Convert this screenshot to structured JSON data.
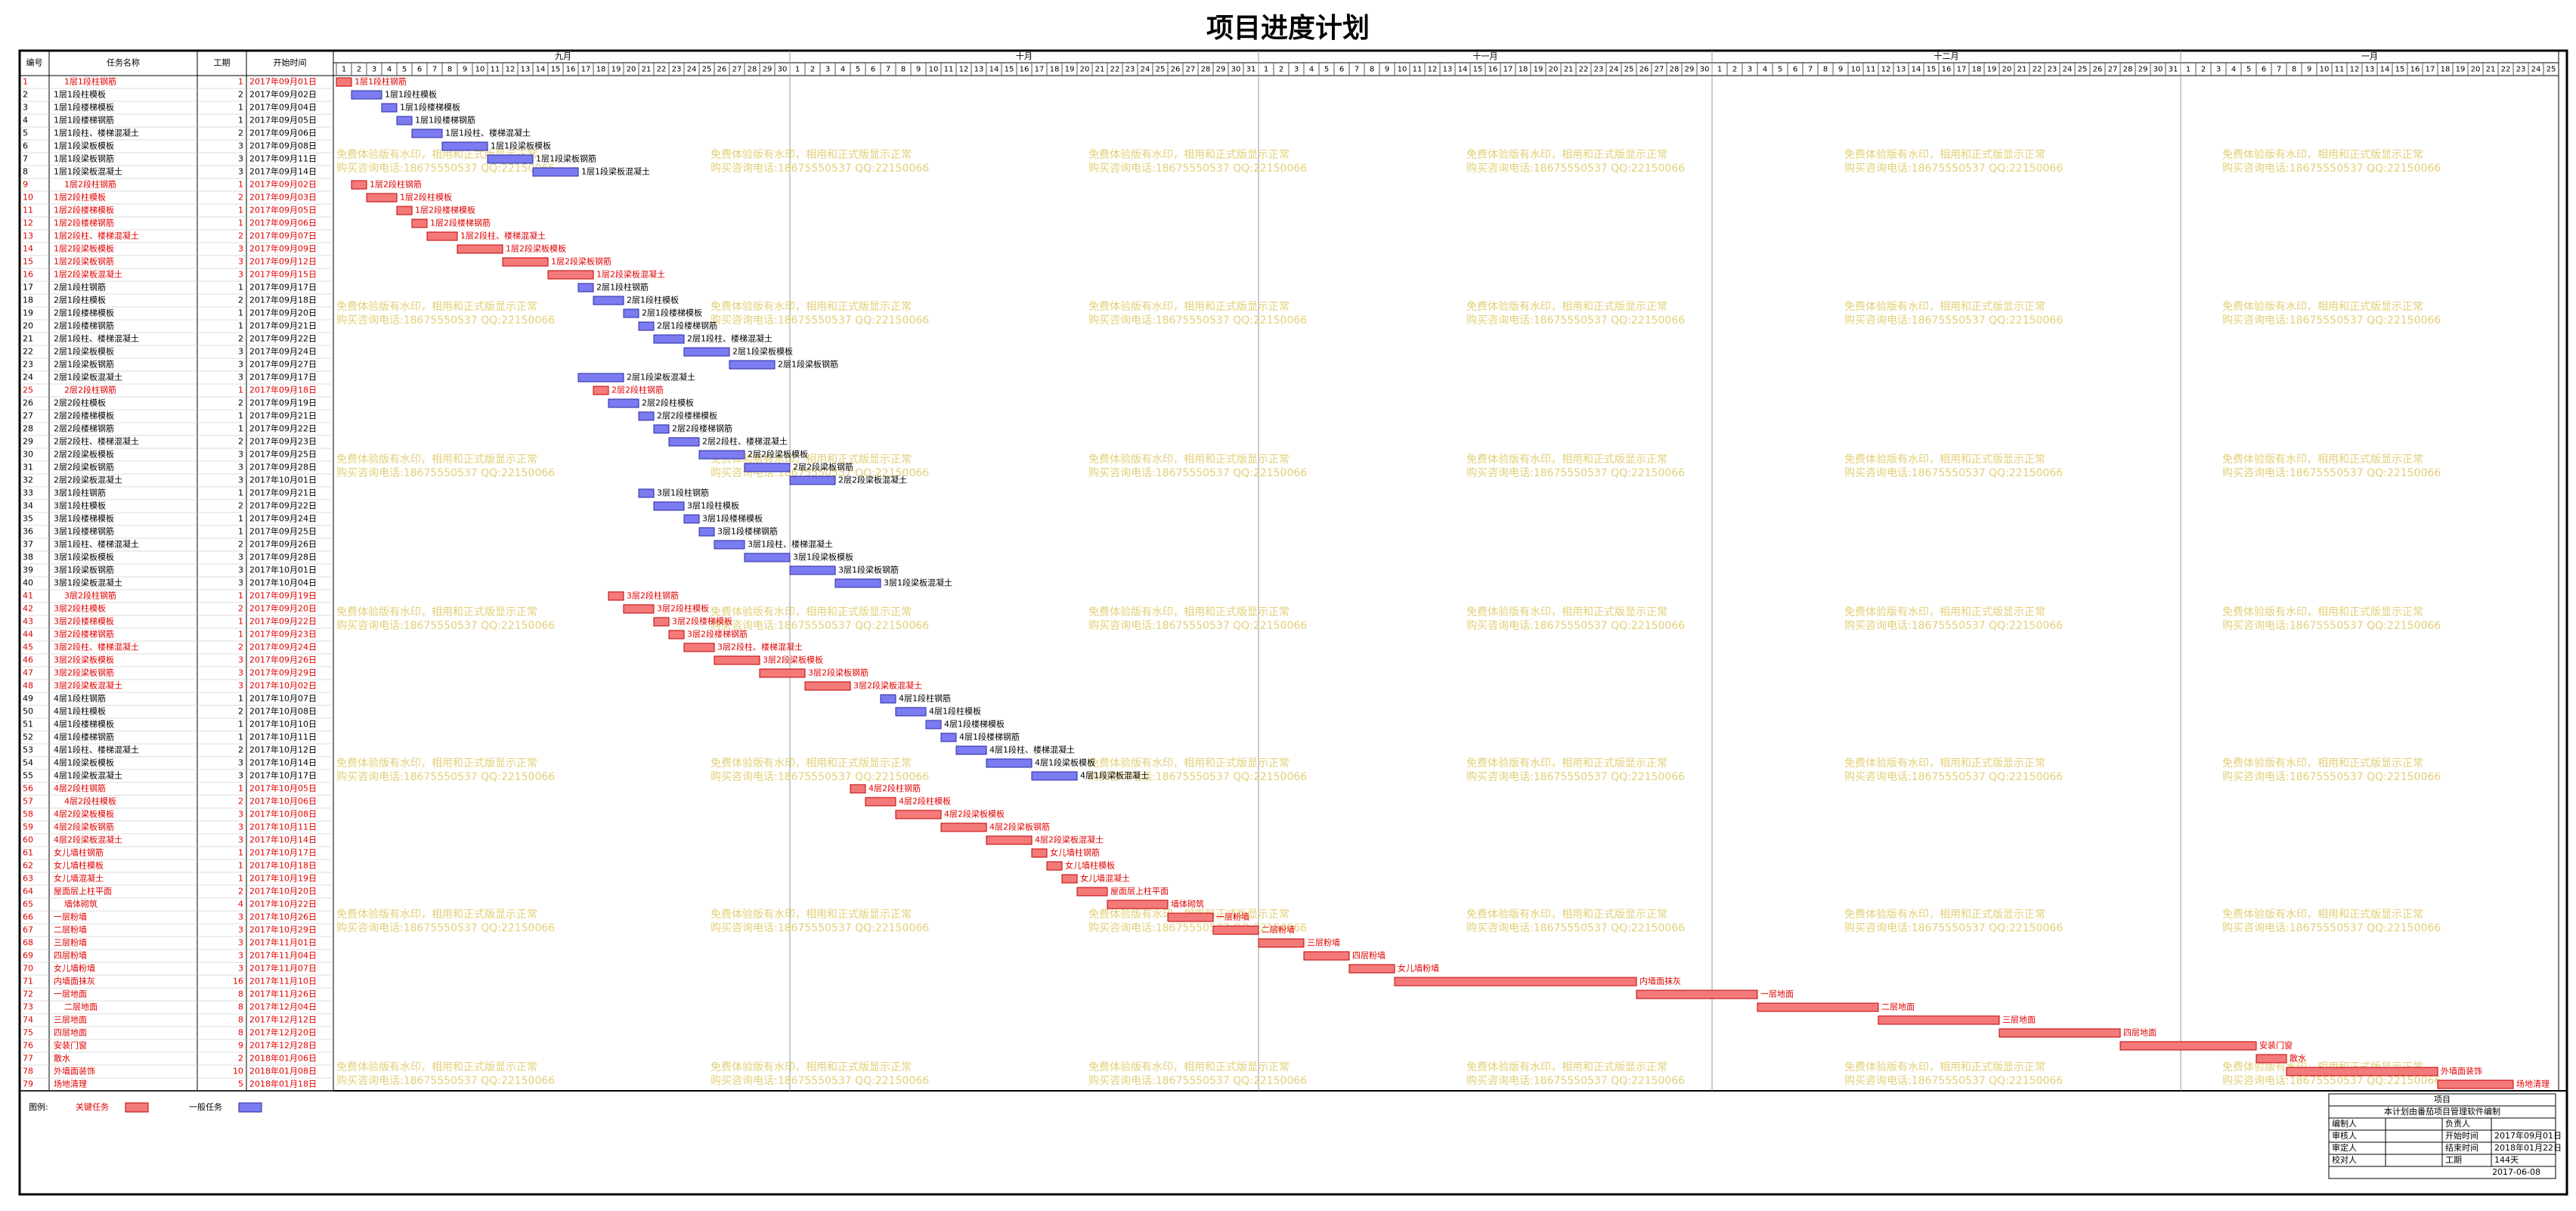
{
  "title": "项目进度计划",
  "columns": [
    "编号",
    "任务名称",
    "工期",
    "开始时间"
  ],
  "months": [
    {
      "label": "九月",
      "days": [
        1,
        2,
        3,
        4,
        5,
        6,
        7,
        8,
        9,
        10,
        11,
        12,
        13,
        14,
        15,
        16,
        17,
        18,
        19,
        20,
        21,
        22,
        23,
        24,
        25,
        26,
        27,
        28,
        29,
        30
      ]
    },
    {
      "label": "十月",
      "days": [
        1,
        2,
        3,
        4,
        5,
        6,
        7,
        8,
        9,
        10,
        11,
        12,
        13,
        14,
        15,
        16,
        17,
        18,
        19,
        20,
        21,
        22,
        23,
        24,
        25,
        26,
        27,
        28,
        29,
        30,
        31
      ]
    },
    {
      "label": "十一月",
      "days": [
        1,
        2,
        3,
        4,
        5,
        6,
        7,
        8,
        9,
        10,
        11,
        12,
        13,
        14,
        15,
        16,
        17,
        18,
        19,
        20,
        21,
        22,
        23,
        24,
        25,
        26,
        27,
        28,
        29,
        30
      ]
    },
    {
      "label": "十二月",
      "days": [
        1,
        2,
        3,
        4,
        5,
        6,
        7,
        8,
        9,
        10,
        11,
        12,
        13,
        14,
        15,
        16,
        17,
        18,
        19,
        20,
        21,
        22,
        23,
        24,
        25,
        26,
        27,
        28,
        29,
        30,
        31
      ]
    },
    {
      "label": "一月",
      "days": [
        1,
        2,
        3,
        4,
        5,
        6,
        7,
        8,
        9,
        10,
        11,
        12,
        13,
        14,
        15,
        16,
        17,
        18,
        19,
        20,
        21,
        22,
        23,
        24,
        25
      ]
    }
  ],
  "tasks": [
    {
      "id": 1,
      "name": "1层1段柱钢筋",
      "duration": 1,
      "start": "2017年09月01日",
      "critical": true
    },
    {
      "id": 2,
      "name": "1层1段柱模板",
      "duration": 2,
      "start": "2017年09月02日",
      "critical": false
    },
    {
      "id": 3,
      "name": "1层1段楼梯模板",
      "duration": 1,
      "start": "2017年09月04日",
      "critical": false
    },
    {
      "id": 4,
      "name": "1层1段楼梯钢筋",
      "duration": 1,
      "start": "2017年09月05日",
      "critical": false
    },
    {
      "id": 5,
      "name": "1层1段柱、楼梯混凝土",
      "duration": 2,
      "start": "2017年09月06日",
      "critical": false
    },
    {
      "id": 6,
      "name": "1层1段梁板模板",
      "duration": 3,
      "start": "2017年09月08日",
      "critical": false
    },
    {
      "id": 7,
      "name": "1层1段梁板钢筋",
      "duration": 3,
      "start": "2017年09月11日",
      "critical": false
    },
    {
      "id": 8,
      "name": "1层1段梁板混凝土",
      "duration": 3,
      "start": "2017年09月14日",
      "critical": false
    },
    {
      "id": 9,
      "name": "1层2段柱钢筋",
      "duration": 1,
      "start": "2017年09月02日",
      "critical": true
    },
    {
      "id": 10,
      "name": "1层2段柱模板",
      "duration": 2,
      "start": "2017年09月03日",
      "critical": true
    },
    {
      "id": 11,
      "name": "1层2段楼梯模板",
      "duration": 1,
      "start": "2017年09月05日",
      "critical": true
    },
    {
      "id": 12,
      "name": "1层2段楼梯钢筋",
      "duration": 1,
      "start": "2017年09月06日",
      "critical": true
    },
    {
      "id": 13,
      "name": "1层2段柱、楼梯混凝土",
      "duration": 2,
      "start": "2017年09月07日",
      "critical": true
    },
    {
      "id": 14,
      "name": "1层2段梁板模板",
      "duration": 3,
      "start": "2017年09月09日",
      "critical": true
    },
    {
      "id": 15,
      "name": "1层2段梁板钢筋",
      "duration": 3,
      "start": "2017年09月12日",
      "critical": true
    },
    {
      "id": 16,
      "name": "1层2段梁板混凝土",
      "duration": 3,
      "start": "2017年09月15日",
      "critical": true
    },
    {
      "id": 17,
      "name": "2层1段柱钢筋",
      "duration": 1,
      "start": "2017年09月17日",
      "critical": false
    },
    {
      "id": 18,
      "name": "2层1段柱模板",
      "duration": 2,
      "start": "2017年09月18日",
      "critical": false
    },
    {
      "id": 19,
      "name": "2层1段楼梯模板",
      "duration": 1,
      "start": "2017年09月20日",
      "critical": false
    },
    {
      "id": 20,
      "name": "2层1段楼梯钢筋",
      "duration": 1,
      "start": "2017年09月21日",
      "critical": false
    },
    {
      "id": 21,
      "name": "2层1段柱、楼梯混凝土",
      "duration": 2,
      "start": "2017年09月22日",
      "critical": false
    },
    {
      "id": 22,
      "name": "2层1段梁板模板",
      "duration": 3,
      "start": "2017年09月24日",
      "critical": false
    },
    {
      "id": 23,
      "name": "2层1段梁板钢筋",
      "duration": 3,
      "start": "2017年09月27日",
      "critical": false
    },
    {
      "id": 24,
      "name": "2层1段梁板混凝土",
      "duration": 3,
      "start": "2017年09月17日",
      "critical": false
    },
    {
      "id": 25,
      "name": "2层2段柱钢筋",
      "duration": 1,
      "start": "2017年09月18日",
      "critical": true
    },
    {
      "id": 26,
      "name": "2层2段柱模板",
      "duration": 2,
      "start": "2017年09月19日",
      "critical": false
    },
    {
      "id": 27,
      "name": "2层2段楼梯模板",
      "duration": 1,
      "start": "2017年09月21日",
      "critical": false
    },
    {
      "id": 28,
      "name": "2层2段楼梯钢筋",
      "duration": 1,
      "start": "2017年09月22日",
      "critical": false
    },
    {
      "id": 29,
      "name": "2层2段柱、楼梯混凝土",
      "duration": 2,
      "start": "2017年09月23日",
      "critical": false
    },
    {
      "id": 30,
      "name": "2层2段梁板模板",
      "duration": 3,
      "start": "2017年09月25日",
      "critical": false
    },
    {
      "id": 31,
      "name": "2层2段梁板钢筋",
      "duration": 3,
      "start": "2017年09月28日",
      "critical": false
    },
    {
      "id": 32,
      "name": "2层2段梁板混凝土",
      "duration": 3,
      "start": "2017年10月01日",
      "critical": false
    },
    {
      "id": 33,
      "name": "3层1段柱钢筋",
      "duration": 1,
      "start": "2017年09月21日",
      "critical": false
    },
    {
      "id": 34,
      "name": "3层1段柱模板",
      "duration": 2,
      "start": "2017年09月22日",
      "critical": false
    },
    {
      "id": 35,
      "name": "3层1段楼梯模板",
      "duration": 1,
      "start": "2017年09月24日",
      "critical": false
    },
    {
      "id": 36,
      "name": "3层1段楼梯钢筋",
      "duration": 1,
      "start": "2017年09月25日",
      "critical": false
    },
    {
      "id": 37,
      "name": "3层1段柱、楼梯混凝土",
      "duration": 2,
      "start": "2017年09月26日",
      "critical": false
    },
    {
      "id": 38,
      "name": "3层1段梁板模板",
      "duration": 3,
      "start": "2017年09月28日",
      "critical": false
    },
    {
      "id": 39,
      "name": "3层1段梁板钢筋",
      "duration": 3,
      "start": "2017年10月01日",
      "critical": false
    },
    {
      "id": 40,
      "name": "3层1段梁板混凝土",
      "duration": 3,
      "start": "2017年10月04日",
      "critical": false
    },
    {
      "id": 41,
      "name": "3层2段柱钢筋",
      "duration": 1,
      "start": "2017年09月19日",
      "critical": true
    },
    {
      "id": 42,
      "name": "3层2段柱模板",
      "duration": 2,
      "start": "2017年09月20日",
      "critical": true
    },
    {
      "id": 43,
      "name": "3层2段楼梯模板",
      "duration": 1,
      "start": "2017年09月22日",
      "critical": true
    },
    {
      "id": 44,
      "name": "3层2段楼梯钢筋",
      "duration": 1,
      "start": "2017年09月23日",
      "critical": true
    },
    {
      "id": 45,
      "name": "3层2段柱、楼梯混凝土",
      "duration": 2,
      "start": "2017年09月24日",
      "critical": true
    },
    {
      "id": 46,
      "name": "3层2段梁板模板",
      "duration": 3,
      "start": "2017年09月26日",
      "critical": true
    },
    {
      "id": 47,
      "name": "3层2段梁板钢筋",
      "duration": 3,
      "start": "2017年09月29日",
      "critical": true
    },
    {
      "id": 48,
      "name": "3层2段梁板混凝土",
      "duration": 3,
      "start": "2017年10月02日",
      "critical": true
    },
    {
      "id": 49,
      "name": "4层1段柱钢筋",
      "duration": 1,
      "start": "2017年10月07日",
      "critical": false
    },
    {
      "id": 50,
      "name": "4层1段柱模板",
      "duration": 2,
      "start": "2017年10月08日",
      "critical": false
    },
    {
      "id": 51,
      "name": "4层1段楼梯模板",
      "duration": 1,
      "start": "2017年10月10日",
      "critical": false
    },
    {
      "id": 52,
      "name": "4层1段楼梯钢筋",
      "duration": 1,
      "start": "2017年10月11日",
      "critical": false
    },
    {
      "id": 53,
      "name": "4层1段柱、楼梯混凝土",
      "duration": 2,
      "start": "2017年10月12日",
      "critical": false
    },
    {
      "id": 54,
      "name": "4层1段梁板模板",
      "duration": 3,
      "start": "2017年10月14日",
      "critical": false
    },
    {
      "id": 55,
      "name": "4层1段梁板混凝土",
      "duration": 3,
      "start": "2017年10月17日",
      "critical": false
    },
    {
      "id": 56,
      "name": "4层2段柱钢筋",
      "duration": 1,
      "start": "2017年10月05日",
      "critical": true
    },
    {
      "id": 57,
      "name": "4层2段柱模板",
      "duration": 2,
      "start": "2017年10月06日",
      "critical": true
    },
    {
      "id": 58,
      "name": "4层2段梁板模板",
      "duration": 3,
      "start": "2017年10月08日",
      "critical": true
    },
    {
      "id": 59,
      "name": "4层2段梁板钢筋",
      "duration": 3,
      "start": "2017年10月11日",
      "critical": true
    },
    {
      "id": 60,
      "name": "4层2段梁板混凝土",
      "duration": 3,
      "start": "2017年10月14日",
      "critical": true
    },
    {
      "id": 61,
      "name": "女儿墙柱钢筋",
      "duration": 1,
      "start": "2017年10月17日",
      "critical": true
    },
    {
      "id": 62,
      "name": "女儿墙柱模板",
      "duration": 1,
      "start": "2017年10月18日",
      "critical": true
    },
    {
      "id": 63,
      "name": "女儿墙混凝土",
      "duration": 1,
      "start": "2017年10月19日",
      "critical": true
    },
    {
      "id": 64,
      "name": "屋面层上柱平面",
      "duration": 2,
      "start": "2017年10月20日",
      "critical": true
    },
    {
      "id": 65,
      "name": "墙体砌筑",
      "duration": 4,
      "start": "2017年10月22日",
      "critical": true
    },
    {
      "id": 66,
      "name": "一层粉墙",
      "duration": 3,
      "start": "2017年10月26日",
      "critical": true
    },
    {
      "id": 67,
      "name": "二层粉墙",
      "duration": 3,
      "start": "2017年10月29日",
      "critical": true
    },
    {
      "id": 68,
      "name": "三层粉墙",
      "duration": 3,
      "start": "2017年11月01日",
      "critical": true
    },
    {
      "id": 69,
      "name": "四层粉墙",
      "duration": 3,
      "start": "2017年11月04日",
      "critical": true
    },
    {
      "id": 70,
      "name": "女儿墙粉墙",
      "duration": 3,
      "start": "2017年11月07日",
      "critical": true
    },
    {
      "id": 71,
      "name": "内墙面抹灰",
      "duration": 16,
      "start": "2017年11月10日",
      "critical": true
    },
    {
      "id": 72,
      "name": "一层地面",
      "duration": 8,
      "start": "2017年11月26日",
      "critical": true
    },
    {
      "id": 73,
      "name": "二层地面",
      "duration": 8,
      "start": "2017年12月04日",
      "critical": true
    },
    {
      "id": 74,
      "name": "三层地面",
      "duration": 8,
      "start": "2017年12月12日",
      "critical": true
    },
    {
      "id": 75,
      "name": "四层地面",
      "duration": 8,
      "start": "2017年12月20日",
      "critical": true
    },
    {
      "id": 76,
      "name": "安装门窗",
      "duration": 9,
      "start": "2017年12月28日",
      "critical": true
    },
    {
      "id": 77,
      "name": "散水",
      "duration": 2,
      "start": "2018年01月06日",
      "critical": true
    },
    {
      "id": 78,
      "name": "外墙面装饰",
      "duration": 10,
      "start": "2018年01月08日",
      "critical": true
    },
    {
      "id": 79,
      "name": "场地清理",
      "duration": 5,
      "start": "2018年01月18日",
      "critical": true
    }
  ],
  "legend": {
    "label": "图例:",
    "items": [
      {
        "label": "关键任务",
        "color": "#f47a7a",
        "stroke": "#c00000"
      },
      {
        "label": "一般任务",
        "color": "#7b7bf2",
        "stroke": "#2a2aa0"
      }
    ]
  },
  "watermark": [
    "免费体验版有水印，相用和正式版显示正常",
    "购买咨询电话:18675550537 QQ:22150066"
  ],
  "info": {
    "header": "项目",
    "note": "本计划由番茄项目管理软件编制",
    "rows": [
      [
        "编制人",
        "",
        "负责人",
        ""
      ],
      [
        "审核人",
        "",
        "开始时间",
        "2017年09月01日"
      ],
      [
        "审定人",
        "",
        "结束时间",
        "2018年01月22日"
      ],
      [
        "校对人",
        "",
        "工期",
        "144天"
      ]
    ],
    "date": "2017-06-08"
  }
}
